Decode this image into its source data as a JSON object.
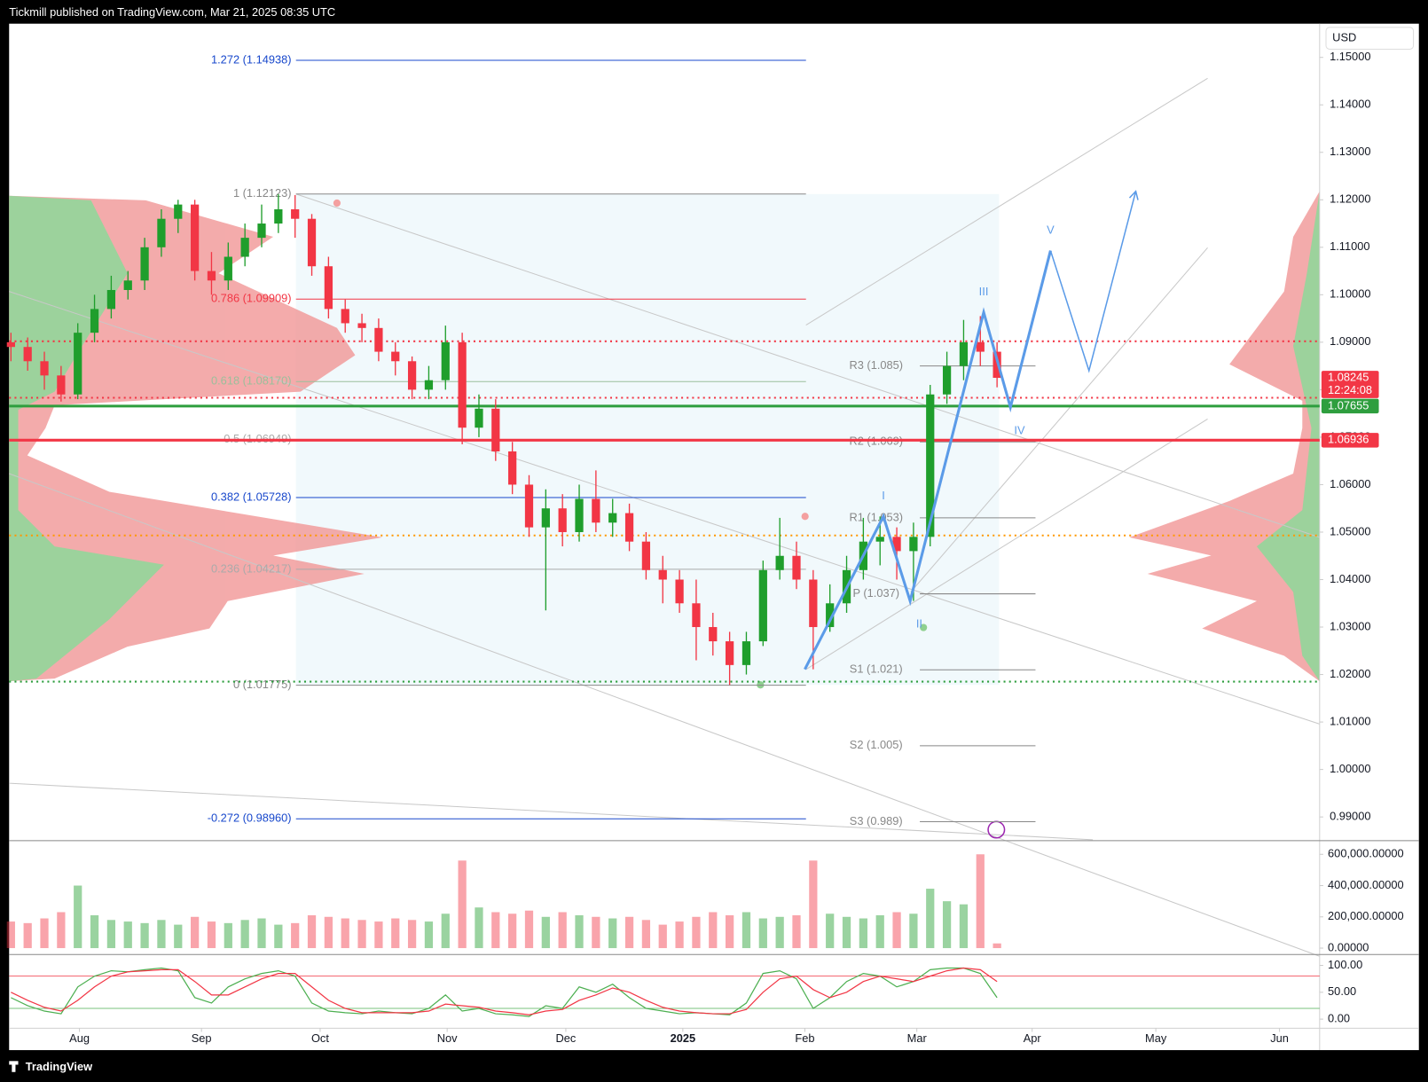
{
  "chart_data": {
    "type": "candlestick",
    "header": "Tickmill published on TradingView.com, Mar 21, 2025 08:35 UTC",
    "currency": "USD",
    "footer": "TradingView",
    "up_color": "#1f9e2c",
    "down_color": "#f23645",
    "open": [
      1.09,
      1.089,
      1.086,
      1.083,
      1.079,
      1.092,
      1.097,
      1.101,
      1.103,
      1.11,
      1.116,
      1.119,
      1.105,
      1.103,
      1.108,
      1.112,
      1.115,
      1.118,
      1.116,
      1.106,
      1.097,
      1.094,
      1.093,
      1.088,
      1.086,
      1.08,
      1.082,
      1.09,
      1.072,
      1.076,
      1.067,
      1.06,
      1.051,
      1.055,
      1.05,
      1.057,
      1.052,
      1.054,
      1.048,
      1.042,
      1.04,
      1.035,
      1.03,
      1.027,
      1.022,
      1.027,
      1.042,
      1.045,
      1.04,
      1.03,
      1.035,
      1.042,
      1.048,
      1.049,
      1.046,
      1.049,
      1.079,
      1.085,
      1.09,
      1.088
    ],
    "high": [
      1.092,
      1.091,
      1.088,
      1.085,
      1.094,
      1.1,
      1.104,
      1.105,
      1.112,
      1.118,
      1.12,
      1.12,
      1.109,
      1.111,
      1.115,
      1.119,
      1.1212,
      1.121,
      1.117,
      1.108,
      1.099,
      1.096,
      1.095,
      1.09,
      1.087,
      1.085,
      1.0935,
      1.092,
      1.079,
      1.078,
      1.069,
      1.062,
      1.059,
      1.058,
      1.06,
      1.063,
      1.057,
      1.056,
      1.05,
      1.045,
      1.042,
      1.04,
      1.033,
      1.029,
      1.029,
      1.044,
      1.053,
      1.048,
      1.042,
      1.039,
      1.045,
      1.053,
      1.0533,
      1.051,
      1.052,
      1.081,
      1.088,
      1.0947,
      1.0955,
      1.09
    ],
    "low": [
      1.086,
      1.084,
      1.08,
      1.0775,
      1.078,
      1.09,
      1.095,
      1.099,
      1.101,
      1.108,
      1.113,
      1.103,
      1.1,
      1.101,
      1.106,
      1.11,
      1.113,
      1.112,
      1.104,
      1.095,
      1.092,
      1.09,
      1.086,
      1.083,
      1.078,
      1.078,
      1.08,
      1.0685,
      1.07,
      1.065,
      1.058,
      1.049,
      1.0335,
      1.047,
      1.048,
      1.05,
      1.049,
      1.046,
      1.04,
      1.035,
      1.033,
      1.023,
      1.024,
      1.0178,
      1.02,
      1.026,
      1.04,
      1.038,
      1.0211,
      1.029,
      1.033,
      1.04,
      1.043,
      1.04,
      1.0355,
      1.047,
      1.077,
      1.082,
      1.085,
      1.0805
    ],
    "close": [
      1.089,
      1.086,
      1.083,
      1.079,
      1.092,
      1.097,
      1.101,
      1.103,
      1.11,
      1.116,
      1.119,
      1.105,
      1.103,
      1.108,
      1.112,
      1.115,
      1.118,
      1.116,
      1.106,
      1.097,
      1.094,
      1.093,
      1.088,
      1.086,
      1.08,
      1.082,
      1.09,
      1.072,
      1.076,
      1.067,
      1.06,
      1.051,
      1.055,
      1.05,
      1.057,
      1.052,
      1.054,
      1.048,
      1.042,
      1.04,
      1.035,
      1.03,
      1.027,
      1.022,
      1.027,
      1.042,
      1.045,
      1.04,
      1.03,
      1.035,
      1.042,
      1.048,
      1.049,
      1.046,
      1.049,
      1.079,
      1.085,
      1.09,
      1.088,
      1.0825
    ],
    "xlim": [
      -0.11,
      78.3
    ],
    "xticks": [
      {
        "value": 4.1,
        "label": "Aug"
      },
      {
        "value": 11.4,
        "label": "Sep"
      },
      {
        "value": 18.5,
        "label": "Oct"
      },
      {
        "value": 26.1,
        "label": "Nov"
      },
      {
        "value": 33.2,
        "label": "Dec"
      },
      {
        "value": 40.2,
        "label": "2025"
      },
      {
        "value": 47.5,
        "label": "Feb"
      },
      {
        "value": 54.2,
        "label": "Mar"
      },
      {
        "value": 61.1,
        "label": "Apr"
      },
      {
        "value": 68.5,
        "label": "May"
      },
      {
        "value": 75.9,
        "label": "Jun"
      }
    ],
    "ylim": [
      0.9852,
      1.1571
    ],
    "yticks": [
      {
        "value": 1.15,
        "label": "1.15000"
      },
      {
        "value": 1.14,
        "label": "1.14000"
      },
      {
        "value": 1.13,
        "label": "1.13000"
      },
      {
        "value": 1.12,
        "label": "1.12000"
      },
      {
        "value": 1.11,
        "label": "1.11000"
      },
      {
        "value": 1.1,
        "label": "1.10000"
      },
      {
        "value": 1.09,
        "label": "1.09000"
      },
      {
        "value": 1.08,
        "label": "1.08000"
      },
      {
        "value": 1.07,
        "label": "1.07000"
      },
      {
        "value": 1.06,
        "label": "1.06000"
      },
      {
        "value": 1.05,
        "label": "1.05000"
      },
      {
        "value": 1.04,
        "label": "1.04000"
      },
      {
        "value": 1.03,
        "label": "1.03000"
      },
      {
        "value": 1.02,
        "label": "1.02000"
      },
      {
        "value": 1.01,
        "label": "1.01000"
      },
      {
        "value": 1.0,
        "label": "1.00000"
      },
      {
        "value": 0.99,
        "label": "0.99000"
      }
    ],
    "price_labels": [
      {
        "value": 1.08245,
        "countdown": "12:24:08",
        "color": "#f23645"
      },
      {
        "value": 1.07655,
        "color": "#2e9e3e"
      },
      {
        "value": 1.06936,
        "color": "#f23645"
      }
    ],
    "levels": [
      {
        "price": 1.0902,
        "color": "#f23645",
        "style": "dotted"
      },
      {
        "price": 1.0783,
        "color": "#f23645",
        "style": "dotted"
      },
      {
        "price": 1.07655,
        "color": "#2e9e3e",
        "style": "solid"
      },
      {
        "price": 1.06936,
        "color": "#f23645",
        "style": "solid"
      },
      {
        "price": 1.0493,
        "color": "#ff9800",
        "style": "dotted"
      },
      {
        "price": 1.0185,
        "color": "#2e9e3e",
        "style": "dotted"
      }
    ],
    "fib": [
      {
        "label": "1.272 (1.14938)",
        "price": 1.14938,
        "color": "#1848cc"
      },
      {
        "label": "1 (1.12123)",
        "price": 1.12123,
        "color": "#888888"
      },
      {
        "label": "0.786 (1.09909)",
        "price": 1.09909,
        "color": "#f23645"
      },
      {
        "label": "0.618 (1.08170)",
        "price": 1.0817,
        "color": "#9bbf9b"
      },
      {
        "label": "0.5 (1.06949)",
        "price": 1.06949,
        "color": "#aaaaaa"
      },
      {
        "label": "0.382 (1.05728)",
        "price": 1.05728,
        "color": "#1848cc"
      },
      {
        "label": "0.236 (1.04217)",
        "price": 1.04217,
        "color": "#aaaaaa"
      },
      {
        "label": "0 (1.01775)",
        "price": 1.01775,
        "color": "#888888"
      },
      {
        "label": "-0.272 (0.98960)",
        "price": 0.9896,
        "color": "#1848cc"
      }
    ],
    "pivots": [
      {
        "label": "R3 (1.085)",
        "price": 1.085
      },
      {
        "label": "R2 (1.069)",
        "price": 1.069
      },
      {
        "label": "R1 (1.053)",
        "price": 1.053
      },
      {
        "label": "P (1.037)",
        "price": 1.037
      },
      {
        "label": "S1 (1.021)",
        "price": 1.021
      },
      {
        "label": "S2 (1.005)",
        "price": 1.005
      },
      {
        "label": "S3 (0.989)",
        "price": 0.989
      }
    ],
    "wave_path": [
      {
        "index": 47.5,
        "price": 1.0211
      },
      {
        "label": "I",
        "index": 52.2,
        "price": 1.0533
      },
      {
        "label": "II",
        "index": 53.8,
        "price": 1.0355
      },
      {
        "label": "III",
        "index": 58.2,
        "price": 1.0963
      },
      {
        "label": "IV",
        "index": 59.8,
        "price": 1.0763
      },
      {
        "label": "V",
        "index": 62.2,
        "price": 1.1093
      }
    ],
    "projection": [
      {
        "index": 62.2,
        "price": 1.1093
      },
      {
        "index": 64.5,
        "price": 1.084
      },
      {
        "index": 67.3,
        "price": 1.1218
      }
    ],
    "wave_color": "#5b9be8",
    "volume": {
      "values": [
        170000,
        160000,
        190000,
        230000,
        400000,
        210000,
        180000,
        170000,
        160000,
        180000,
        150000,
        200000,
        170000,
        160000,
        180000,
        190000,
        150000,
        160000,
        210000,
        200000,
        190000,
        180000,
        170000,
        190000,
        180000,
        170000,
        220000,
        560000,
        260000,
        230000,
        220000,
        240000,
        200000,
        230000,
        210000,
        200000,
        190000,
        200000,
        180000,
        150000,
        170000,
        200000,
        230000,
        210000,
        230000,
        190000,
        200000,
        210000,
        560000,
        220000,
        200000,
        190000,
        210000,
        230000,
        220000,
        380000,
        300000,
        280000,
        600000,
        30000
      ],
      "ylim": [
        -23300,
        658250
      ],
      "yticks": [
        {
          "value": 600000,
          "label": "600,000.00000"
        },
        {
          "value": 400000,
          "label": "400,000.00000"
        },
        {
          "value": 200000,
          "label": "200,000.00000"
        },
        {
          "value": 0,
          "label": "0.00000"
        }
      ]
    },
    "stochastic": {
      "k": [
        40,
        25,
        15,
        10,
        60,
        80,
        90,
        88,
        92,
        95,
        90,
        40,
        30,
        60,
        75,
        85,
        90,
        80,
        30,
        15,
        12,
        10,
        15,
        12,
        10,
        20,
        45,
        15,
        20,
        10,
        8,
        5,
        25,
        20,
        60,
        50,
        65,
        40,
        20,
        15,
        10,
        12,
        10,
        8,
        30,
        85,
        90,
        75,
        20,
        40,
        70,
        85,
        80,
        60,
        70,
        92,
        95,
        95,
        85,
        40
      ],
      "d": [
        50,
        35,
        22,
        15,
        35,
        60,
        80,
        88,
        90,
        92,
        92,
        70,
        45,
        45,
        60,
        75,
        85,
        85,
        60,
        35,
        20,
        12,
        12,
        12,
        12,
        15,
        28,
        25,
        22,
        15,
        12,
        8,
        15,
        18,
        35,
        45,
        58,
        50,
        35,
        22,
        15,
        12,
        10,
        10,
        18,
        50,
        75,
        80,
        55,
        40,
        50,
        70,
        80,
        75,
        70,
        80,
        90,
        95,
        92,
        70
      ],
      "k_color": "#4caf50",
      "d_color": "#f23645",
      "bands": [
        80,
        20
      ],
      "ylim": [
        -15.3,
        116.9
      ],
      "yticks": [
        {
          "value": 100,
          "label": "100.00"
        },
        {
          "value": 50,
          "label": "50.00"
        },
        {
          "value": 0,
          "label": "0.00"
        }
      ]
    }
  }
}
